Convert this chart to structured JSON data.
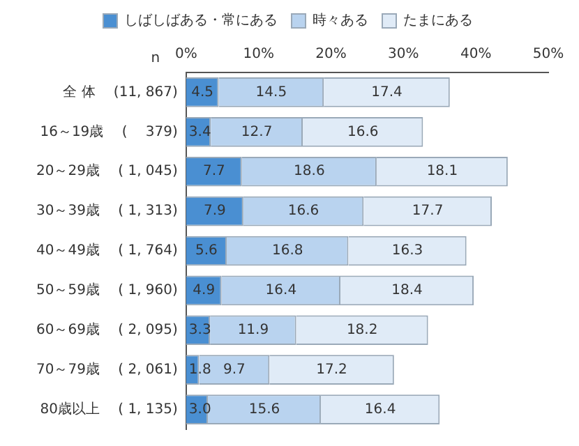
{
  "chart_data": {
    "type": "bar",
    "orientation": "horizontal",
    "stacked": true,
    "categories": [
      "全 体　 (11, 867)",
      "16～19歳　 (　 379)",
      "20～29歳　 ( 1, 045)",
      "30～39歳　 ( 1, 313)",
      "40～49歳　 ( 1, 764)",
      "50～59歳　 ( 1, 960)",
      "60～69歳　 ( 2, 095)",
      "70～79歳　 ( 2, 061)",
      "80歳以上　 ( 1, 135)"
    ],
    "series": [
      {
        "name": "しばしばある・常にある",
        "color": "#4a8fd2",
        "values": [
          4.5,
          3.4,
          7.7,
          7.9,
          5.6,
          4.9,
          3.3,
          1.8,
          3.0
        ],
        "value_labels": [
          "4.5",
          "3.4",
          "7.7",
          "7.9",
          "5.6",
          "4.9",
          "3.3",
          "1.8",
          "3.0"
        ]
      },
      {
        "name": "時々ある",
        "color": "#b9d3ef",
        "values": [
          14.5,
          12.7,
          18.6,
          16.6,
          16.8,
          16.4,
          11.9,
          9.7,
          15.6
        ],
        "value_labels": [
          "14.5",
          "12.7",
          "18.6",
          "16.6",
          "16.8",
          "16.4",
          "11.9",
          "9.7",
          "15.6"
        ]
      },
      {
        "name": "たまにある",
        "color": "#e0ebf7",
        "values": [
          17.4,
          16.6,
          18.1,
          17.7,
          16.3,
          18.4,
          18.2,
          17.2,
          16.4
        ],
        "value_labels": [
          "17.4",
          "16.6",
          "18.1",
          "17.7",
          "16.3",
          "18.4",
          "18.2",
          "17.2",
          "16.4"
        ]
      }
    ],
    "xlim": [
      0,
      50
    ],
    "xticks": [
      {
        "value": 0,
        "label": "0%"
      },
      {
        "value": 10,
        "label": "10%"
      },
      {
        "value": 20,
        "label": "20%"
      },
      {
        "value": 30,
        "label": "30%"
      },
      {
        "value": 40,
        "label": "40%"
      },
      {
        "value": 50,
        "label": "50%"
      }
    ],
    "annotations": [
      "n"
    ],
    "grid": false,
    "legend": "top"
  }
}
